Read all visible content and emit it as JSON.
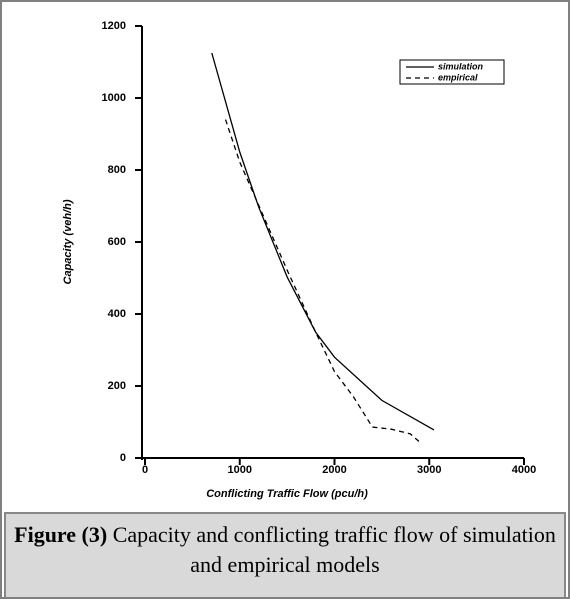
{
  "chart_data": {
    "type": "line",
    "xlabel": "Conflicting Traffic Flow (pcu/h)",
    "ylabel": "Capacity (veh/h)",
    "xlim": [
      0,
      4000
    ],
    "xticks": [
      0,
      1000,
      2000,
      3000,
      4000
    ],
    "ylim": [
      0,
      1200
    ],
    "yticks": [
      0,
      200,
      400,
      600,
      800,
      1000,
      1200
    ],
    "legend": "upper right",
    "series": [
      {
        "name": "simulation",
        "color": "#000000",
        "dash": "solid",
        "x": [
          705,
          1000,
          1200,
          1500,
          1800,
          2000,
          2500,
          3050
        ],
        "values": [
          1125,
          850,
          697,
          503,
          350,
          280,
          160,
          78
        ]
      },
      {
        "name": "empirical",
        "color": "#000000",
        "dash": "dashed",
        "x": [
          850,
          1000,
          1500,
          1800,
          2000,
          2200,
          2400,
          2600,
          2800,
          2900
        ],
        "values": [
          940,
          822,
          522,
          350,
          240,
          170,
          86,
          80,
          67,
          44
        ]
      }
    ]
  },
  "caption": {
    "label": "Figure (3)",
    "text": "Capacity and conflicting traffic flow of simulation and empirical models"
  }
}
